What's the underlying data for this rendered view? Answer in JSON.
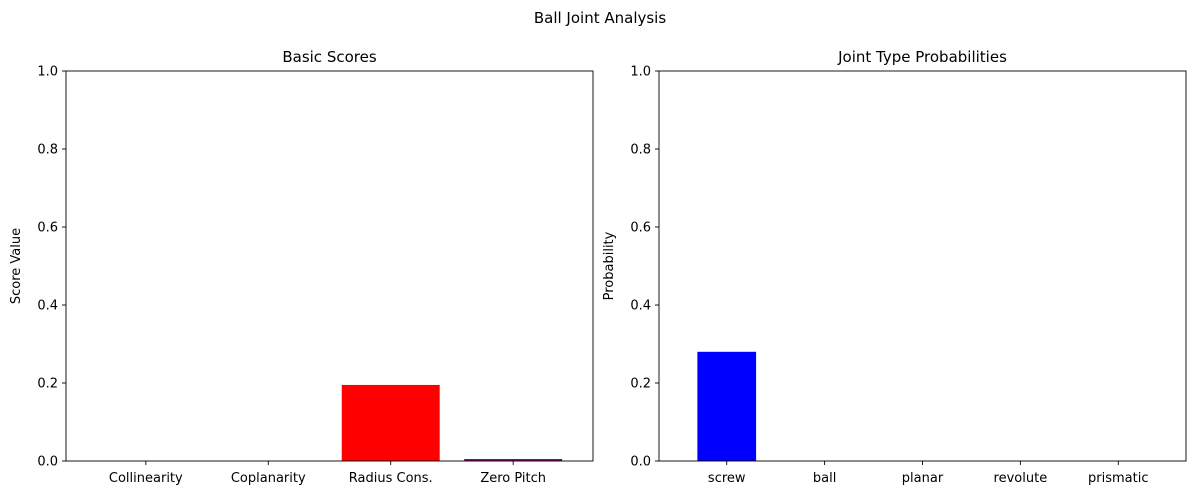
{
  "figure": {
    "suptitle": "Ball Joint Analysis"
  },
  "chart_data": [
    {
      "type": "bar",
      "title": "Basic Scores",
      "xlabel": "",
      "ylabel": "Score Value",
      "ylim": [
        0,
        1
      ],
      "yticks": [
        0.0,
        0.2,
        0.4,
        0.6,
        0.8,
        1.0
      ],
      "ytick_labels": [
        "0.0",
        "0.2",
        "0.4",
        "0.6",
        "0.8",
        "1.0"
      ],
      "categories": [
        "Collinearity",
        "Coplanarity",
        "Radius Cons.",
        "Zero Pitch"
      ],
      "values": [
        0.0,
        0.0,
        0.195,
        0.005
      ],
      "colors": [
        "#1f77b4",
        "#00ff00",
        "#ff0000",
        "#800080"
      ],
      "grid": false,
      "legend": false
    },
    {
      "type": "bar",
      "title": "Joint Type Probabilities",
      "xlabel": "",
      "ylabel": "Probability",
      "ylim": [
        0,
        1
      ],
      "yticks": [
        0.0,
        0.2,
        0.4,
        0.6,
        0.8,
        1.0
      ],
      "ytick_labels": [
        "0.0",
        "0.2",
        "0.4",
        "0.6",
        "0.8",
        "1.0"
      ],
      "categories": [
        "screw",
        "ball",
        "planar",
        "revolute",
        "prismatic"
      ],
      "values": [
        0.28,
        0.0,
        0.0,
        0.0,
        0.0
      ],
      "colors": [
        "#0000ff",
        "#1f77b4",
        "#1f77b4",
        "#1f77b4",
        "#1f77b4"
      ],
      "grid": false,
      "legend": false
    }
  ]
}
